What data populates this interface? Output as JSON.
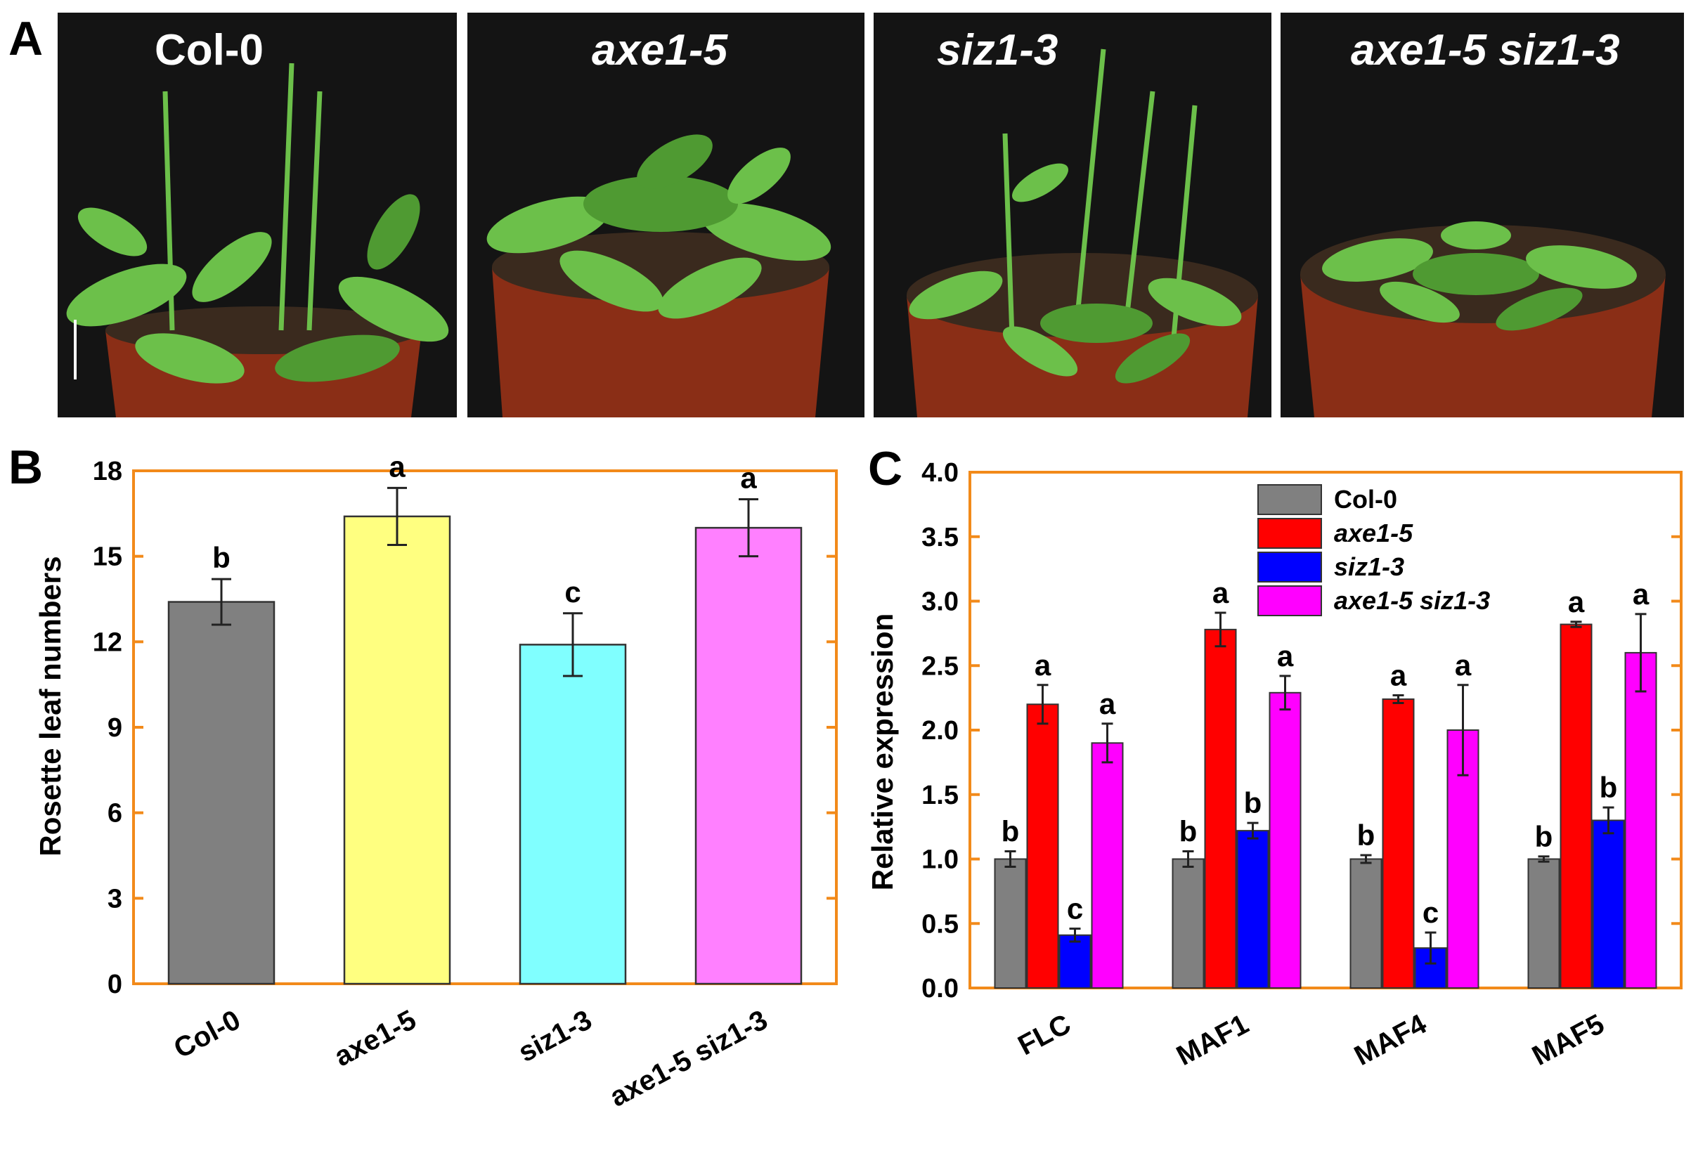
{
  "panel_labels": {
    "a": "A",
    "b": "B",
    "c": "C"
  },
  "panel_a": {
    "photos": [
      {
        "title": "Col-0",
        "italic": false
      },
      {
        "title": "axe1-5",
        "italic": true
      },
      {
        "title": "siz1-3",
        "italic": true
      },
      {
        "title": "axe1-5 siz1-3",
        "italic": true
      }
    ]
  },
  "colors": {
    "frame": "#f28a1a",
    "photo_bg": "#141414",
    "leaf": "#6cc04a",
    "leaf_dark": "#4f9a32",
    "pot": "#8a2e16",
    "soil": "#3a2a1e"
  },
  "chart_data": [
    {
      "type": "bar",
      "panel": "B",
      "categories": [
        "Col-0",
        "axe1-5",
        "siz1-3",
        "axe1-5 siz1-3"
      ],
      "values": [
        13.4,
        16.4,
        11.9,
        16.0
      ],
      "errors": [
        0.8,
        1.0,
        1.1,
        1.0
      ],
      "significance": [
        "b",
        "a",
        "c",
        "a"
      ],
      "colors": [
        "#808080",
        "#ffff80",
        "#80ffff",
        "#ff80ff"
      ],
      "ylabel": "Rosette leaf numbers",
      "ylim": [
        0,
        18
      ],
      "yticks": [
        "0",
        "3",
        "6",
        "9",
        "12",
        "15",
        "18"
      ]
    },
    {
      "type": "bar",
      "panel": "C",
      "categories": [
        "FLC",
        "MAF1",
        "MAF4",
        "MAF5"
      ],
      "series": [
        {
          "name": "Col-0",
          "italic": false,
          "color": "#808080",
          "values": [
            1.0,
            1.0,
            1.0,
            1.0
          ],
          "errors": [
            0.06,
            0.06,
            0.03,
            0.02
          ],
          "significance": [
            "b",
            "b",
            "b",
            "b"
          ]
        },
        {
          "name": "axe1-5",
          "italic": true,
          "color": "#ff0000",
          "values": [
            2.2,
            2.78,
            2.24,
            2.82
          ],
          "errors": [
            0.15,
            0.13,
            0.03,
            0.02
          ],
          "significance": [
            "a",
            "a",
            "a",
            "a"
          ]
        },
        {
          "name": "siz1-3",
          "italic": true,
          "color": "#0000ff",
          "values": [
            0.41,
            1.22,
            0.31,
            1.3
          ],
          "errors": [
            0.05,
            0.06,
            0.12,
            0.1
          ],
          "significance": [
            "c",
            "b",
            "c",
            "b"
          ]
        },
        {
          "name": "axe1-5 siz1-3",
          "italic": true,
          "color": "#ff00ff",
          "values": [
            1.9,
            2.29,
            2.0,
            2.6
          ],
          "errors": [
            0.15,
            0.13,
            0.35,
            0.3
          ],
          "significance": [
            "a",
            "a",
            "a",
            "a"
          ]
        }
      ],
      "ylabel": "Relative expression",
      "ylim": [
        0,
        4
      ],
      "yticks": [
        "0.0",
        "0.5",
        "1.0",
        "1.5",
        "2.0",
        "2.5",
        "3.0",
        "3.5",
        "4.0"
      ],
      "legend_position": "top-right"
    }
  ]
}
